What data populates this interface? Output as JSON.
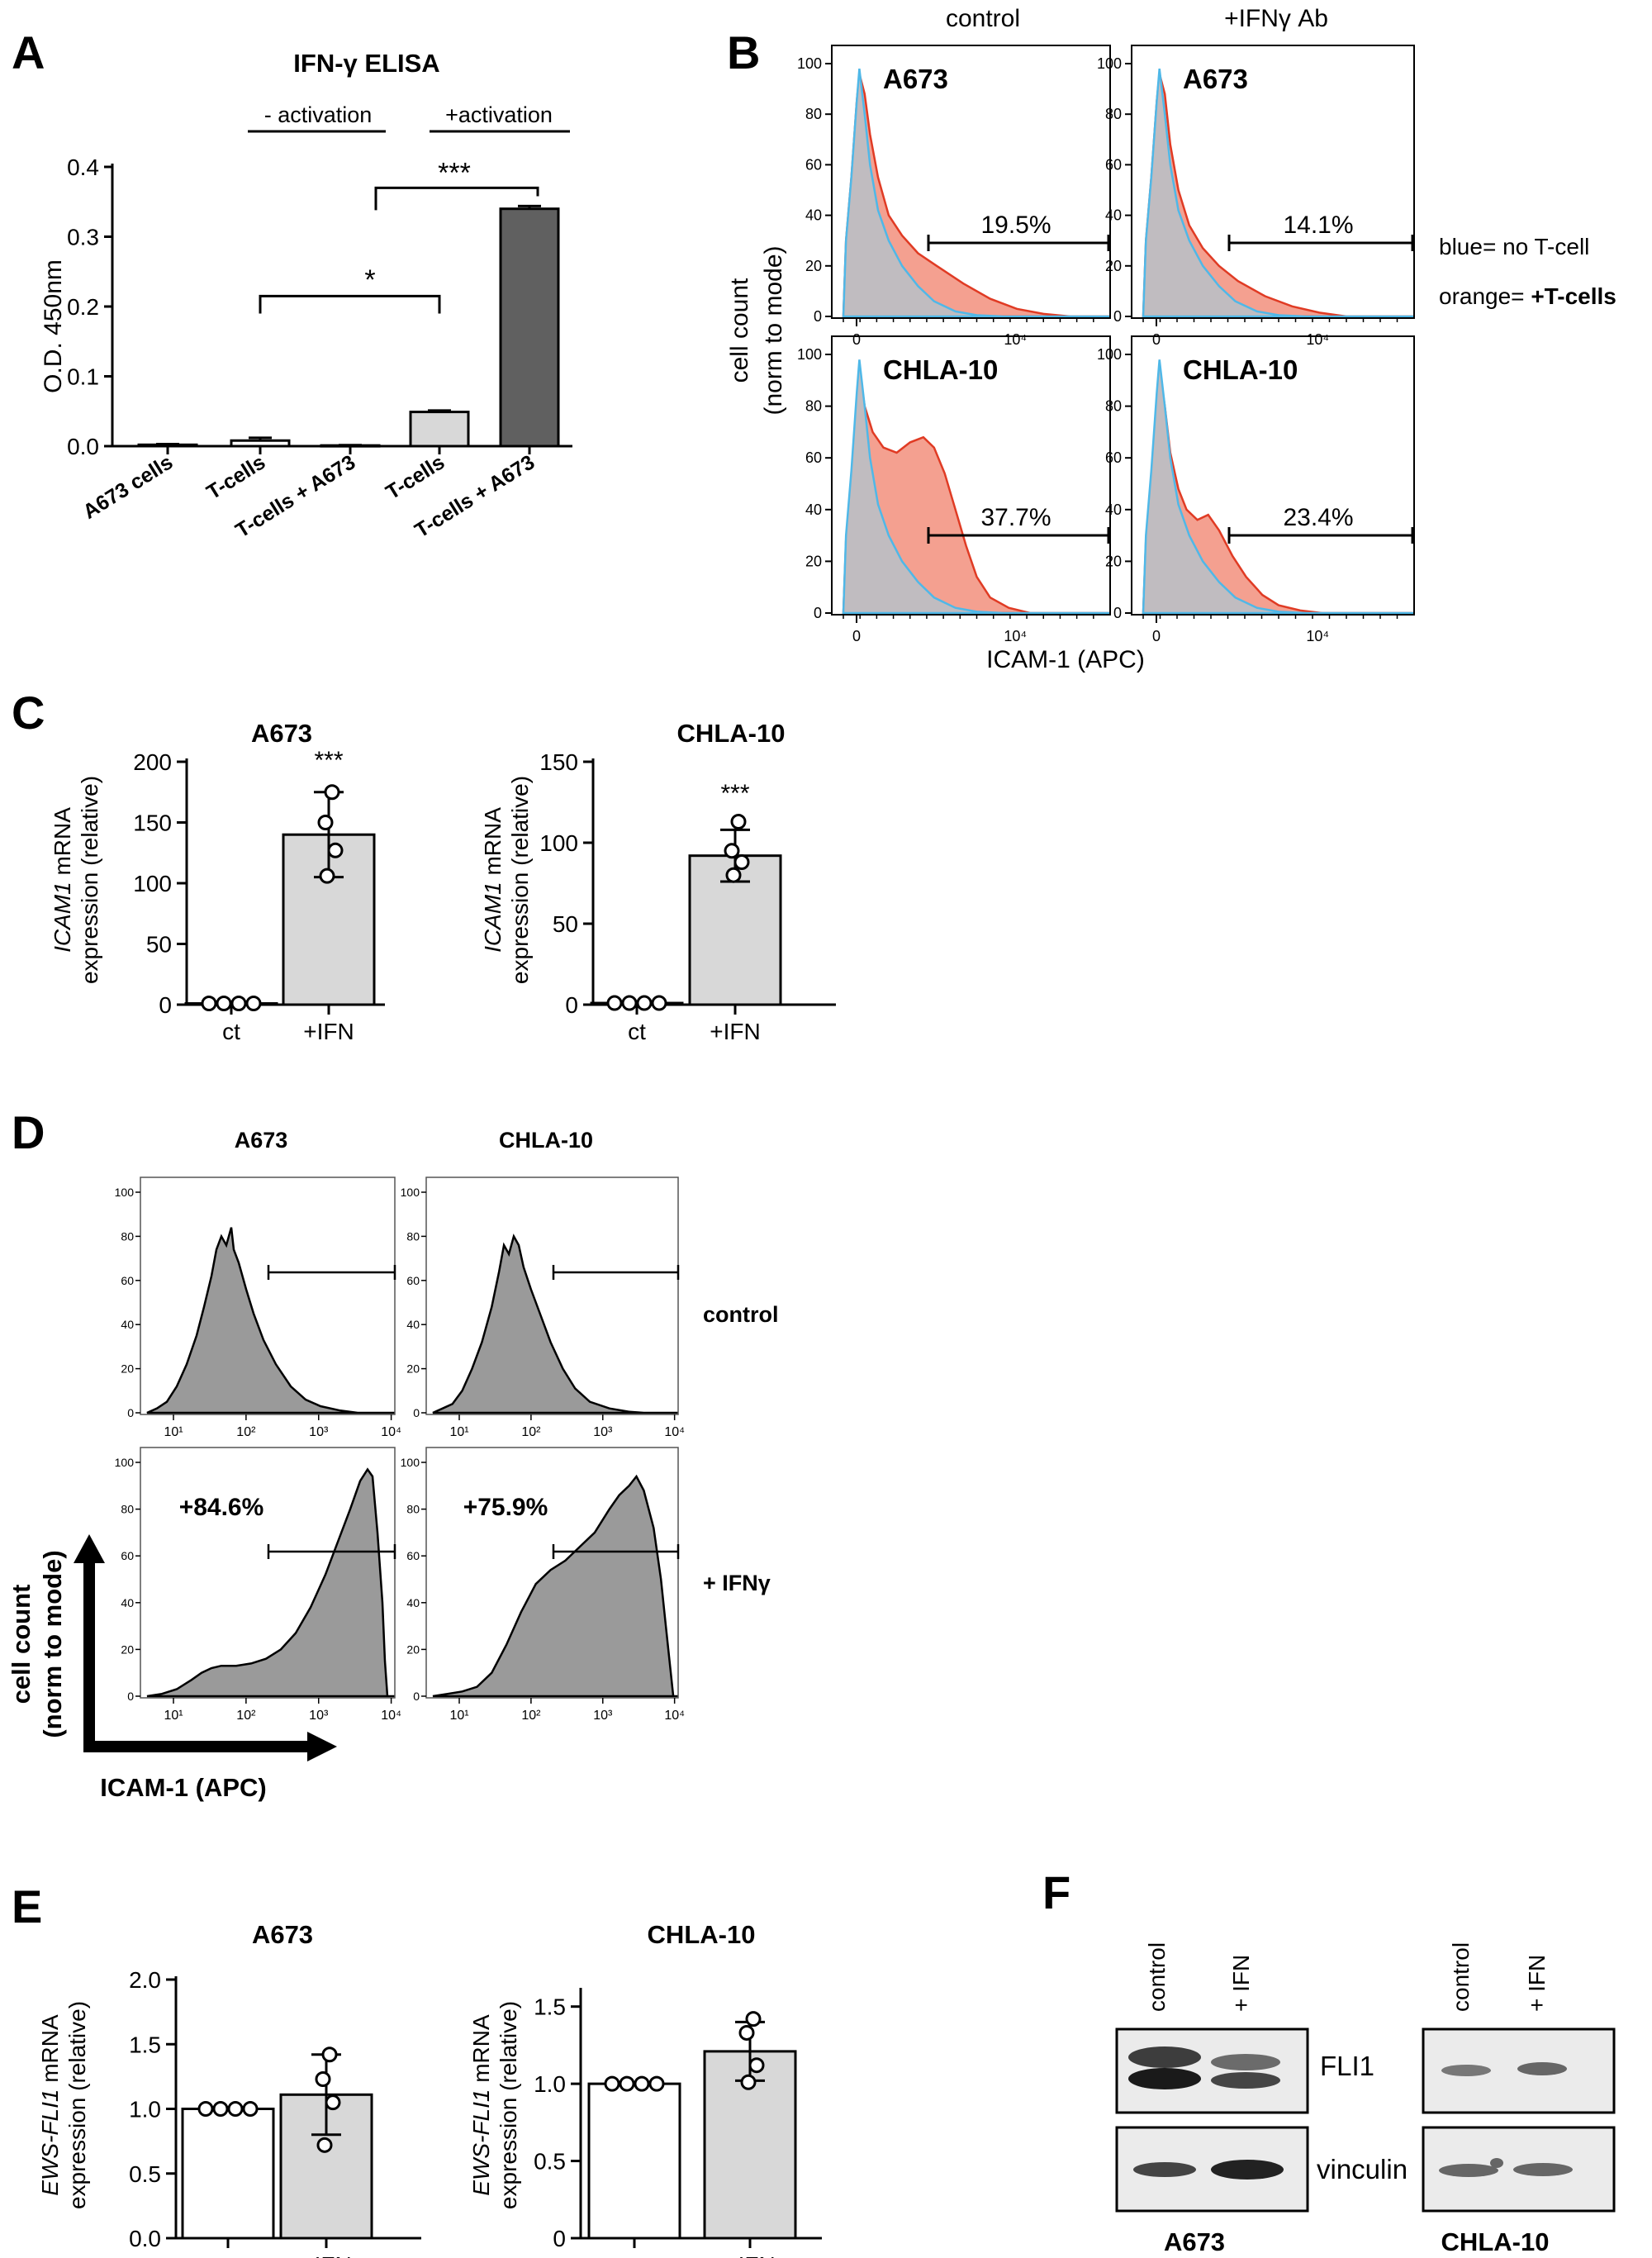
{
  "colors": {
    "orange_fill": "#f4a090",
    "orange_line": "#e03b24",
    "blue_fill": "#c0bcc0",
    "blue_line": "#4fb8e8",
    "gray_bar_light": "#d8d8d8",
    "gray_bar_dark": "#606060",
    "hist_gray": "#9a9a9a"
  },
  "panels": {
    "A": {
      "label": "A",
      "title": "IFN-γ ELISA",
      "group_left": "- activation",
      "group_right": "+activation",
      "sig_star1": "*",
      "sig_star3": "***",
      "ylabel": "O.D. 450nm",
      "yticks": [
        "0.0",
        "0.1",
        "0.2",
        "0.3",
        "0.4"
      ],
      "categories": [
        "A673 cells",
        "T-cells",
        "T-cells + A673",
        "T-cells",
        "T-cells + A673"
      ]
    },
    "B": {
      "label": "B",
      "col_control": "control",
      "col_ab": "+IFNγ Ab",
      "ylabel_1": "cell count",
      "ylabel_2": "(norm to mode)",
      "xlabel": "ICAM-1 (APC)",
      "yticks": [
        "0",
        "20",
        "40",
        "60",
        "80",
        "100"
      ],
      "xtick_zero": "0",
      "xtick_high": "10⁴",
      "row_a673": "A673",
      "row_chla": "CHLA-10",
      "pct_a673_control": "19.5%",
      "pct_a673_ab": "14.1%",
      "pct_chla_control": "37.7%",
      "pct_chla_ab": "23.4%",
      "legend_blue": "blue= no T-cell",
      "legend_orange_prefix": "orange= ",
      "legend_orange_bold": "+T-cells"
    },
    "C": {
      "label": "C",
      "title_left": "A673",
      "title_right": "CHLA-10",
      "ylabel_gene": "ICAM1",
      "ylabel_rest": " mRNA",
      "ylabel_2": "expression (relative)",
      "yticks_left": [
        "0",
        "50",
        "100",
        "150",
        "200"
      ],
      "yticks_right": [
        "0",
        "50",
        "100",
        "150"
      ],
      "categories": [
        "ct",
        "+IFN"
      ],
      "sig": "***"
    },
    "D": {
      "label": "D",
      "title_left": "A673",
      "title_right": "CHLA-10",
      "row_control": "control",
      "row_ifn": "+ IFNγ",
      "pct_a673": "+84.6%",
      "pct_chla": "+75.9%",
      "ylabel_1": "cell count",
      "ylabel_2": "(norm to mode)",
      "xlabel": "ICAM-1 (APC)",
      "yticks": [
        "0",
        "20",
        "40",
        "60",
        "80",
        "100"
      ],
      "xticks": [
        "10¹",
        "10²",
        "10³",
        "10⁴"
      ]
    },
    "E": {
      "label": "E",
      "title_left": "A673",
      "title_right": "CHLA-10",
      "ylabel_gene": "EWS-FLI1",
      "ylabel_rest": " mRNA",
      "ylabel_2": "expression (relative)",
      "yticks_left": [
        "0.0",
        "0.5",
        "1.0",
        "1.5",
        "2.0"
      ],
      "yticks_right": [
        "0",
        "0.5",
        "1.0",
        "1.5"
      ],
      "categories": [
        "ct",
        "+IFN"
      ]
    },
    "F": {
      "label": "F",
      "lane_control": "control",
      "lane_ifn": "+ IFN",
      "band_fli1": "FLI1",
      "band_vinculin": "vinculin",
      "cell_left": "A673",
      "cell_right": "CHLA-10"
    }
  },
  "chart_data": [
    {
      "panel": "A",
      "type": "bar",
      "title": "IFN-γ ELISA",
      "ylabel": "O.D. 450nm",
      "ylim": [
        0,
        0.4
      ],
      "categories": [
        "A673 cells",
        "T-cells",
        "T-cells + A673",
        "T-cells",
        "T-cells + A673"
      ],
      "values": [
        0.002,
        0.008,
        0.001,
        0.049,
        0.34
      ],
      "errors": [
        0.001,
        0.004,
        0.0005,
        0.002,
        0.004
      ]
    },
    {
      "panel": "B",
      "type": "histogram-overlay",
      "xlabel": "ICAM-1 (APC)",
      "ylim": [
        0,
        100
      ],
      "gated_percent": {
        "A673 control": 19.5,
        "A673 +IFNγ Ab": 14.1,
        "CHLA-10 control": 37.7,
        "CHLA-10 +IFNγ Ab": 23.4
      }
    },
    {
      "panel": "C-A673",
      "type": "bar",
      "title": "A673",
      "ylim": [
        0,
        200
      ],
      "categories": [
        "ct",
        "+IFN"
      ],
      "values": [
        1,
        140
      ],
      "sd": [
        0,
        35
      ],
      "points": [
        [
          1,
          1,
          1,
          1
        ],
        [
          175,
          150,
          127,
          106
        ]
      ]
    },
    {
      "panel": "C-CHLA-10",
      "type": "bar",
      "title": "CHLA-10",
      "ylim": [
        0,
        150
      ],
      "categories": [
        "ct",
        "+IFN"
      ],
      "values": [
        1,
        92
      ],
      "sd": [
        0,
        16
      ],
      "points": [
        [
          1,
          1,
          1,
          1
        ],
        [
          113,
          95,
          88,
          80
        ]
      ]
    },
    {
      "panel": "D",
      "type": "histogram",
      "xlabel": "ICAM-1 (APC)",
      "ylim": [
        0,
        100
      ],
      "gated_percent": {
        "A673 + IFNγ": 84.6,
        "CHLA-10 + IFNγ": 75.9
      }
    },
    {
      "panel": "E-A673",
      "type": "bar",
      "title": "A673",
      "ylim": [
        0,
        2.0
      ],
      "categories": [
        "ct",
        "+IFN"
      ],
      "values": [
        1.0,
        1.11
      ],
      "sd": [
        0,
        0.31
      ],
      "points": [
        [
          1.0,
          1.0,
          1.0,
          1.0
        ],
        [
          1.42,
          1.23,
          1.05,
          0.72
        ]
      ]
    },
    {
      "panel": "E-CHLA-10",
      "type": "bar",
      "title": "CHLA-10",
      "ylim": [
        0,
        1.6
      ],
      "categories": [
        "ct",
        "+IFN"
      ],
      "values": [
        1.0,
        1.21
      ],
      "sd": [
        0,
        0.19
      ],
      "points": [
        [
          1.0,
          1.0,
          1.0,
          1.0
        ],
        [
          1.42,
          1.33,
          1.12,
          1.01
        ]
      ]
    }
  ]
}
